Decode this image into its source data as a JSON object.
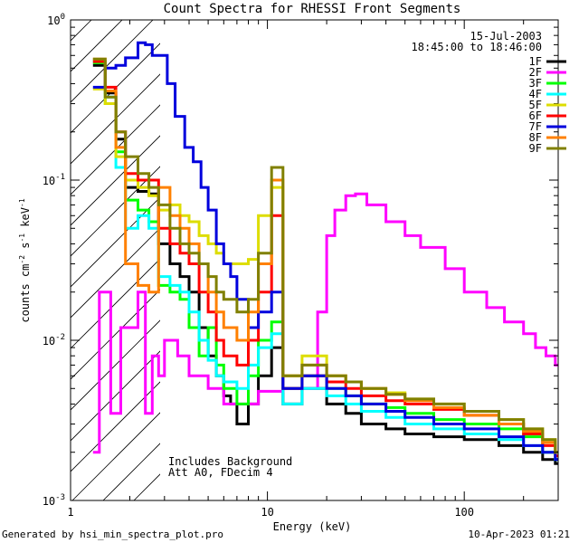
{
  "chart_data": {
    "type": "line",
    "title": "Count Spectra for RHESSI Front Segments",
    "xlabel": "Energy (keV)",
    "ylabel_parts": [
      "counts cm",
      "-2",
      " s",
      "-1",
      " keV",
      "-1"
    ],
    "xscale": "log",
    "yscale": "log",
    "xlim": [
      1.0,
      300
    ],
    "ylim": [
      0.001,
      1.0
    ],
    "xticks": [
      {
        "value": 1,
        "label": "1"
      },
      {
        "value": 10,
        "label": "10"
      },
      {
        "value": 100,
        "label": "100"
      }
    ],
    "yticks": [
      {
        "value": 1,
        "label": "10",
        "exp": "0"
      },
      {
        "value": 0.1,
        "label": "10",
        "exp": "-1"
      },
      {
        "value": 0.01,
        "label": "10",
        "exp": "-2"
      },
      {
        "value": 0.001,
        "label": "10",
        "exp": "-3"
      }
    ],
    "hatched_region": [
      1.0,
      3.0
    ],
    "legend_header": [
      "15-Jul-2003",
      "18:45:00 to 18:46:00"
    ],
    "legend_placement": "top-right",
    "annotations": [
      "Includes Background",
      "Att A0, FDecim 4"
    ],
    "footer_left": "Generated by hsi_min_spectra_plot.pro",
    "footer_right": "10-Apr-2023 01:21",
    "series": [
      {
        "name": "1F",
        "color": "#000000",
        "points": [
          [
            1.3,
            0.52
          ],
          [
            1.5,
            0.35
          ],
          [
            1.7,
            0.18
          ],
          [
            1.9,
            0.09
          ],
          [
            2.2,
            0.085
          ],
          [
            2.5,
            0.082
          ],
          [
            2.8,
            0.04
          ],
          [
            3.2,
            0.03
          ],
          [
            3.6,
            0.025
          ],
          [
            4.0,
            0.02
          ],
          [
            4.5,
            0.012
          ],
          [
            5.0,
            0.008
          ],
          [
            5.5,
            0.006
          ],
          [
            6.0,
            0.0045
          ],
          [
            6.5,
            0.004
          ],
          [
            7.0,
            0.003
          ],
          [
            8.0,
            0.004
          ],
          [
            9.0,
            0.006
          ],
          [
            10.5,
            0.009
          ],
          [
            12,
            0.004
          ],
          [
            15,
            0.005
          ],
          [
            20,
            0.004
          ],
          [
            25,
            0.0035
          ],
          [
            30,
            0.003
          ],
          [
            40,
            0.0028
          ],
          [
            50,
            0.0026
          ],
          [
            70,
            0.0025
          ],
          [
            100,
            0.0024
          ],
          [
            150,
            0.0022
          ],
          [
            200,
            0.002
          ],
          [
            250,
            0.0018
          ],
          [
            290,
            0.0017
          ]
        ]
      },
      {
        "name": "2F",
        "color": "#ff00ff",
        "points": [
          [
            1.3,
            0.002
          ],
          [
            1.4,
            0.02
          ],
          [
            1.5,
            0.02
          ],
          [
            1.6,
            0.0035
          ],
          [
            1.8,
            0.012
          ],
          [
            2.0,
            0.012
          ],
          [
            2.2,
            0.02
          ],
          [
            2.4,
            0.0035
          ],
          [
            2.6,
            0.008
          ],
          [
            2.8,
            0.006
          ],
          [
            3.0,
            0.01
          ],
          [
            3.5,
            0.008
          ],
          [
            4.0,
            0.006
          ],
          [
            5.0,
            0.005
          ],
          [
            6.0,
            0.004
          ],
          [
            7.0,
            0.004
          ],
          [
            9.0,
            0.0048
          ],
          [
            12,
            0.005
          ],
          [
            16,
            0.005
          ],
          [
            18,
            0.015
          ],
          [
            20,
            0.045
          ],
          [
            22,
            0.065
          ],
          [
            25,
            0.08
          ],
          [
            28,
            0.082
          ],
          [
            32,
            0.07
          ],
          [
            40,
            0.055
          ],
          [
            50,
            0.045
          ],
          [
            60,
            0.038
          ],
          [
            80,
            0.028
          ],
          [
            100,
            0.02
          ],
          [
            130,
            0.016
          ],
          [
            160,
            0.013
          ],
          [
            200,
            0.011
          ],
          [
            230,
            0.009
          ],
          [
            260,
            0.008
          ],
          [
            290,
            0.007
          ]
        ]
      },
      {
        "name": "3F",
        "color": "#00ff00",
        "points": [
          [
            1.3,
            0.54
          ],
          [
            1.5,
            0.3
          ],
          [
            1.7,
            0.15
          ],
          [
            1.9,
            0.075
          ],
          [
            2.2,
            0.065
          ],
          [
            2.5,
            0.055
          ],
          [
            2.8,
            0.022
          ],
          [
            3.2,
            0.02
          ],
          [
            3.6,
            0.018
          ],
          [
            4.0,
            0.012
          ],
          [
            4.5,
            0.008
          ],
          [
            5.0,
            0.012
          ],
          [
            5.5,
            0.007
          ],
          [
            6.0,
            0.005
          ],
          [
            7.0,
            0.004
          ],
          [
            8.0,
            0.006
          ],
          [
            9.0,
            0.01
          ],
          [
            10.5,
            0.013
          ],
          [
            12,
            0.005
          ],
          [
            15,
            0.006
          ],
          [
            20,
            0.005
          ],
          [
            25,
            0.0045
          ],
          [
            30,
            0.004
          ],
          [
            40,
            0.0038
          ],
          [
            50,
            0.0035
          ],
          [
            70,
            0.0032
          ],
          [
            100,
            0.003
          ],
          [
            150,
            0.0028
          ],
          [
            200,
            0.0025
          ],
          [
            250,
            0.002
          ],
          [
            290,
            0.0018
          ]
        ]
      },
      {
        "name": "4F",
        "color": "#00ffff",
        "points": [
          [
            1.3,
            0.55
          ],
          [
            1.5,
            0.33
          ],
          [
            1.7,
            0.12
          ],
          [
            1.9,
            0.05
          ],
          [
            2.2,
            0.06
          ],
          [
            2.5,
            0.05
          ],
          [
            2.8,
            0.025
          ],
          [
            3.2,
            0.022
          ],
          [
            3.6,
            0.02
          ],
          [
            4.0,
            0.015
          ],
          [
            4.5,
            0.01
          ],
          [
            5.0,
            0.0075
          ],
          [
            5.5,
            0.006
          ],
          [
            6.0,
            0.0055
          ],
          [
            7.0,
            0.005
          ],
          [
            8.0,
            0.007
          ],
          [
            9.0,
            0.009
          ],
          [
            10.5,
            0.011
          ],
          [
            12,
            0.004
          ],
          [
            15,
            0.005
          ],
          [
            20,
            0.0045
          ],
          [
            25,
            0.004
          ],
          [
            30,
            0.0036
          ],
          [
            40,
            0.0033
          ],
          [
            50,
            0.003
          ],
          [
            70,
            0.0028
          ],
          [
            100,
            0.0026
          ],
          [
            150,
            0.0024
          ],
          [
            200,
            0.0022
          ],
          [
            250,
            0.002
          ],
          [
            290,
            0.0018
          ]
        ]
      },
      {
        "name": "5F",
        "color": "#dddd00",
        "points": [
          [
            1.3,
            0.37
          ],
          [
            1.5,
            0.3
          ],
          [
            1.7,
            0.14
          ],
          [
            1.9,
            0.1
          ],
          [
            2.2,
            0.09
          ],
          [
            2.5,
            0.08
          ],
          [
            2.8,
            0.065
          ],
          [
            3.2,
            0.07
          ],
          [
            3.6,
            0.06
          ],
          [
            4.0,
            0.055
          ],
          [
            4.5,
            0.045
          ],
          [
            5.0,
            0.04
          ],
          [
            5.5,
            0.035
          ],
          [
            6.0,
            0.03
          ],
          [
            7.0,
            0.03
          ],
          [
            8.0,
            0.032
          ],
          [
            9.0,
            0.06
          ],
          [
            10.5,
            0.09
          ],
          [
            12,
            0.006
          ],
          [
            15,
            0.008
          ],
          [
            20,
            0.006
          ],
          [
            25,
            0.0055
          ],
          [
            30,
            0.005
          ],
          [
            40,
            0.0047
          ],
          [
            50,
            0.0043
          ],
          [
            70,
            0.004
          ],
          [
            100,
            0.0036
          ],
          [
            150,
            0.0032
          ],
          [
            200,
            0.0028
          ],
          [
            250,
            0.0024
          ],
          [
            290,
            0.002
          ]
        ]
      },
      {
        "name": "6F",
        "color": "#ff0000",
        "points": [
          [
            1.3,
            0.55
          ],
          [
            1.5,
            0.38
          ],
          [
            1.7,
            0.2
          ],
          [
            1.9,
            0.11
          ],
          [
            2.2,
            0.1
          ],
          [
            2.5,
            0.1
          ],
          [
            2.8,
            0.05
          ],
          [
            3.2,
            0.04
          ],
          [
            3.6,
            0.035
          ],
          [
            4.0,
            0.03
          ],
          [
            4.5,
            0.02
          ],
          [
            5.0,
            0.015
          ],
          [
            5.5,
            0.01
          ],
          [
            6.0,
            0.008
          ],
          [
            7.0,
            0.007
          ],
          [
            8.0,
            0.01
          ],
          [
            9.0,
            0.02
          ],
          [
            10.5,
            0.06
          ],
          [
            12,
            0.005
          ],
          [
            15,
            0.006
          ],
          [
            20,
            0.0055
          ],
          [
            25,
            0.005
          ],
          [
            30,
            0.0045
          ],
          [
            40,
            0.0042
          ],
          [
            50,
            0.004
          ],
          [
            70,
            0.0037
          ],
          [
            100,
            0.0034
          ],
          [
            150,
            0.003
          ],
          [
            200,
            0.0026
          ],
          [
            250,
            0.0022
          ],
          [
            290,
            0.0019
          ]
        ]
      },
      {
        "name": "7F",
        "color": "#0000dd",
        "points": [
          [
            1.3,
            0.38
          ],
          [
            1.5,
            0.5
          ],
          [
            1.7,
            0.52
          ],
          [
            1.9,
            0.58
          ],
          [
            2.2,
            0.72
          ],
          [
            2.4,
            0.7
          ],
          [
            2.6,
            0.6
          ],
          [
            2.8,
            0.6
          ],
          [
            3.1,
            0.4
          ],
          [
            3.4,
            0.25
          ],
          [
            3.8,
            0.16
          ],
          [
            4.2,
            0.13
          ],
          [
            4.6,
            0.09
          ],
          [
            5.0,
            0.065
          ],
          [
            5.5,
            0.04
          ],
          [
            6.0,
            0.03
          ],
          [
            6.5,
            0.025
          ],
          [
            7.0,
            0.018
          ],
          [
            8.0,
            0.012
          ],
          [
            9.0,
            0.015
          ],
          [
            10.5,
            0.02
          ],
          [
            12,
            0.005
          ],
          [
            15,
            0.006
          ],
          [
            20,
            0.005
          ],
          [
            25,
            0.0045
          ],
          [
            30,
            0.004
          ],
          [
            40,
            0.0036
          ],
          [
            50,
            0.0033
          ],
          [
            70,
            0.003
          ],
          [
            100,
            0.0028
          ],
          [
            150,
            0.0025
          ],
          [
            200,
            0.0022
          ],
          [
            250,
            0.002
          ],
          [
            290,
            0.0018
          ]
        ]
      },
      {
        "name": "8F",
        "color": "#ff8000",
        "points": [
          [
            1.3,
            0.57
          ],
          [
            1.5,
            0.36
          ],
          [
            1.7,
            0.16
          ],
          [
            1.9,
            0.03
          ],
          [
            2.2,
            0.022
          ],
          [
            2.5,
            0.02
          ],
          [
            2.8,
            0.09
          ],
          [
            3.2,
            0.06
          ],
          [
            3.6,
            0.05
          ],
          [
            4.0,
            0.04
          ],
          [
            4.5,
            0.03
          ],
          [
            5.0,
            0.02
          ],
          [
            5.5,
            0.015
          ],
          [
            6.0,
            0.012
          ],
          [
            7.0,
            0.01
          ],
          [
            8.0,
            0.015
          ],
          [
            9.0,
            0.03
          ],
          [
            10.5,
            0.1
          ],
          [
            12,
            0.006
          ],
          [
            15,
            0.007
          ],
          [
            20,
            0.006
          ],
          [
            25,
            0.0055
          ],
          [
            30,
            0.005
          ],
          [
            40,
            0.0046
          ],
          [
            50,
            0.0042
          ],
          [
            70,
            0.0038
          ],
          [
            100,
            0.0034
          ],
          [
            150,
            0.003
          ],
          [
            200,
            0.0027
          ],
          [
            250,
            0.0023
          ],
          [
            290,
            0.002
          ]
        ]
      },
      {
        "name": "9F",
        "color": "#808000",
        "points": [
          [
            1.3,
            0.57
          ],
          [
            1.5,
            0.33
          ],
          [
            1.7,
            0.2
          ],
          [
            1.9,
            0.14
          ],
          [
            2.2,
            0.11
          ],
          [
            2.5,
            0.09
          ],
          [
            2.8,
            0.07
          ],
          [
            3.2,
            0.05
          ],
          [
            3.6,
            0.04
          ],
          [
            4.0,
            0.035
          ],
          [
            4.5,
            0.03
          ],
          [
            5.0,
            0.025
          ],
          [
            5.5,
            0.02
          ],
          [
            6.0,
            0.018
          ],
          [
            7.0,
            0.015
          ],
          [
            8.0,
            0.018
          ],
          [
            9.0,
            0.035
          ],
          [
            10.5,
            0.12
          ],
          [
            12,
            0.006
          ],
          [
            15,
            0.007
          ],
          [
            20,
            0.006
          ],
          [
            25,
            0.0055
          ],
          [
            30,
            0.005
          ],
          [
            40,
            0.0046
          ],
          [
            50,
            0.0043
          ],
          [
            70,
            0.004
          ],
          [
            100,
            0.0036
          ],
          [
            150,
            0.0032
          ],
          [
            200,
            0.0028
          ],
          [
            250,
            0.0024
          ],
          [
            290,
            0.002
          ]
        ]
      }
    ]
  }
}
